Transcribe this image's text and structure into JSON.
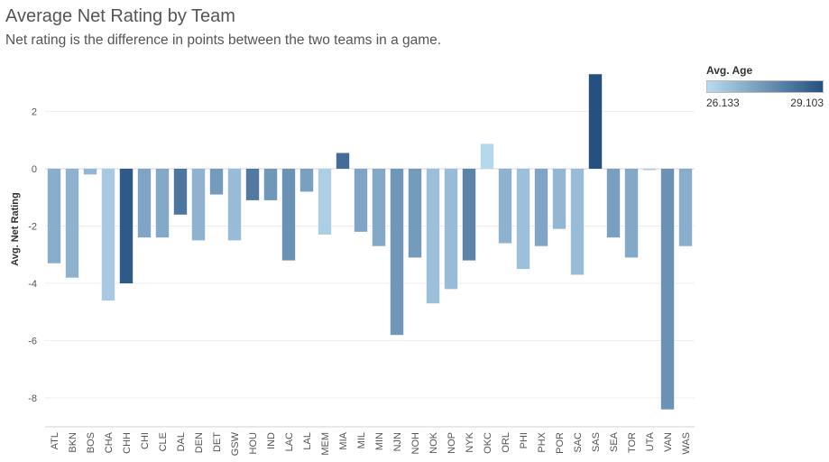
{
  "title": "Average Net Rating by Team",
  "subtitle": "Net rating is the difference in points between the two teams in a game.",
  "legend": {
    "title": "Avg. Age",
    "min_label": "26.133",
    "max_label": "29.103",
    "min": 26.133,
    "max": 29.103,
    "color_low": "#b9dbf0",
    "color_high": "#25507f"
  },
  "chart_data": {
    "type": "bar",
    "title": "Average Net Rating by Team",
    "ylabel": "Avg. Net Rating",
    "xlabel": "",
    "ylim": [
      -9,
      3.5
    ],
    "yticks": [
      2,
      0,
      -2,
      -4,
      -6,
      -8
    ],
    "categories": [
      "ATL",
      "BKN",
      "BOS",
      "CHA",
      "CHH",
      "CHI",
      "CLE",
      "DAL",
      "DEN",
      "DET",
      "GSW",
      "HOU",
      "IND",
      "LAC",
      "LAL",
      "MEM",
      "MIA",
      "MIL",
      "MIN",
      "NJN",
      "NOH",
      "NOK",
      "NOP",
      "NYK",
      "OKC",
      "ORL",
      "PHI",
      "PHX",
      "POR",
      "SAC",
      "SAS",
      "SEA",
      "TOR",
      "UTA",
      "VAN",
      "WAS"
    ],
    "values": [
      -3.3,
      -3.8,
      -0.2,
      -4.6,
      -4.0,
      -2.4,
      -2.4,
      -1.6,
      -2.5,
      -0.9,
      -2.5,
      -1.1,
      -1.1,
      -3.2,
      -0.8,
      -2.3,
      0.55,
      -2.2,
      -2.7,
      -5.8,
      -3.1,
      -4.7,
      -4.2,
      -3.2,
      0.87,
      -2.6,
      -3.5,
      -2.7,
      -2.1,
      -3.7,
      3.3,
      -2.4,
      -3.1,
      -0.05,
      -8.4,
      -2.7
    ],
    "avg_age": [
      27.1,
      27.0,
      26.9,
      26.5,
      28.9,
      27.3,
      27.2,
      28.3,
      27.0,
      27.5,
      26.8,
      28.2,
      27.6,
      27.7,
      27.4,
      26.4,
      28.5,
      27.3,
      27.2,
      27.6,
      27.5,
      26.7,
      26.8,
      28.0,
      26.2,
      27.0,
      26.7,
      27.3,
      26.9,
      26.8,
      29.1,
      27.4,
      27.2,
      26.4,
      27.7,
      27.1
    ]
  }
}
